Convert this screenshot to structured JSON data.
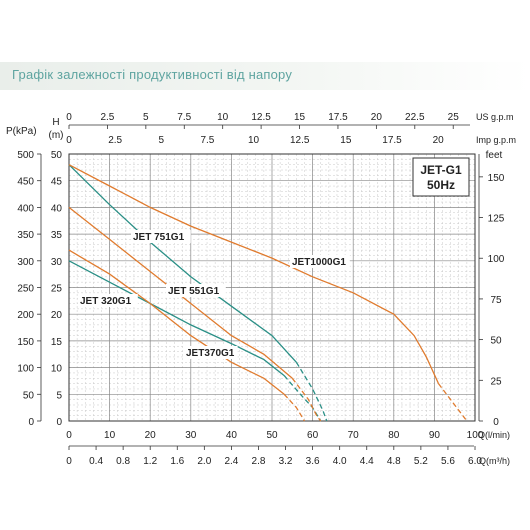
{
  "page_title": "Графік залежності продуктивності від напору",
  "chart_data": {
    "type": "line",
    "title": "",
    "legend_box": [
      "JET-G1",
      "50Hz"
    ],
    "primary_x": {
      "label": "Q(l/min)",
      "min": 0,
      "max": 100,
      "ticks": [
        0,
        10,
        20,
        30,
        40,
        50,
        60,
        70,
        80,
        90,
        100
      ]
    },
    "flow_m3h": {
      "label": "Q(m³/h)",
      "ticks": [
        "0",
        "0.4",
        "0.8",
        "1.2",
        "1.6",
        "2.0",
        "2.4",
        "2.8",
        "3.2",
        "3.6",
        "4.0",
        "4.4",
        "4.8",
        "5.2",
        "5.6",
        "6.0"
      ]
    },
    "us_gpm": {
      "label": "US g.p.m",
      "ticks": [
        "0",
        "2.5",
        "5",
        "7.5",
        "10",
        "12.5",
        "15",
        "17.5",
        "20",
        "22.5",
        "25"
      ]
    },
    "imp_gpm": {
      "label": "Imp g.p.m",
      "ticks": [
        "0",
        "2.5",
        "5",
        "7.5",
        "10",
        "12.5",
        "15",
        "17.5",
        "20"
      ]
    },
    "head_m": {
      "label_top": "H",
      "label": "(m)",
      "min": 0,
      "max": 50,
      "ticks": [
        0,
        5,
        10,
        15,
        20,
        25,
        30,
        35,
        40,
        45,
        50
      ]
    },
    "pressure_kpa": {
      "label": "P(kPa)",
      "ticks": [
        0,
        50,
        100,
        150,
        200,
        250,
        300,
        350,
        400,
        450,
        500
      ]
    },
    "head_feet": {
      "label": "feet",
      "ticks": [
        0,
        25,
        50,
        75,
        100,
        125,
        150
      ]
    },
    "series": [
      {
        "name": "JET 320G1",
        "color": "#2a8f86",
        "points": [
          [
            0,
            30
          ],
          [
            10,
            26
          ],
          [
            20,
            22
          ],
          [
            30,
            18
          ],
          [
            40,
            14.5
          ],
          [
            48,
            11.5
          ],
          [
            53,
            8.5
          ]
        ],
        "dashed": [
          [
            53,
            8.5
          ],
          [
            57,
            5
          ],
          [
            60,
            2.5
          ],
          [
            62,
            0
          ]
        ]
      },
      {
        "name": "JET370G1",
        "color": "#e07b2e",
        "points": [
          [
            0,
            32
          ],
          [
            10,
            27.5
          ],
          [
            20,
            22
          ],
          [
            30,
            16
          ],
          [
            40,
            11
          ],
          [
            48,
            8
          ],
          [
            53,
            5
          ]
        ],
        "dashed": [
          [
            53,
            5
          ],
          [
            56,
            2.5
          ],
          [
            58,
            0
          ]
        ]
      },
      {
        "name": "JET 551G1",
        "color": "#e07b2e",
        "points": [
          [
            0,
            40
          ],
          [
            10,
            34
          ],
          [
            20,
            28
          ],
          [
            30,
            22
          ],
          [
            40,
            16
          ],
          [
            48,
            12.5
          ],
          [
            55,
            8
          ]
        ],
        "dashed": [
          [
            55,
            8
          ],
          [
            59,
            4
          ],
          [
            61,
            1
          ],
          [
            62,
            0
          ]
        ]
      },
      {
        "name": "JET 751G1",
        "color": "#2a8f86",
        "points": [
          [
            0,
            48
          ],
          [
            10,
            40.5
          ],
          [
            20,
            33.5
          ],
          [
            30,
            27
          ],
          [
            40,
            21.5
          ],
          [
            50,
            16
          ],
          [
            56,
            11
          ]
        ],
        "dashed": [
          [
            56,
            11
          ],
          [
            60,
            6
          ],
          [
            62.5,
            2
          ],
          [
            63.5,
            0
          ]
        ]
      },
      {
        "name": "JET1000G1",
        "color": "#e07b2e",
        "points": [
          [
            0,
            48
          ],
          [
            10,
            44
          ],
          [
            20,
            40
          ],
          [
            30,
            36.5
          ],
          [
            40,
            33.5
          ],
          [
            50,
            30.5
          ],
          [
            60,
            27
          ],
          [
            70,
            24
          ],
          [
            80,
            20
          ],
          [
            85,
            16
          ],
          [
            88,
            12
          ],
          [
            91,
            7
          ]
        ],
        "dashed": [
          [
            91,
            7
          ],
          [
            95,
            3
          ],
          [
            98,
            0
          ]
        ]
      }
    ],
    "grid": true
  }
}
